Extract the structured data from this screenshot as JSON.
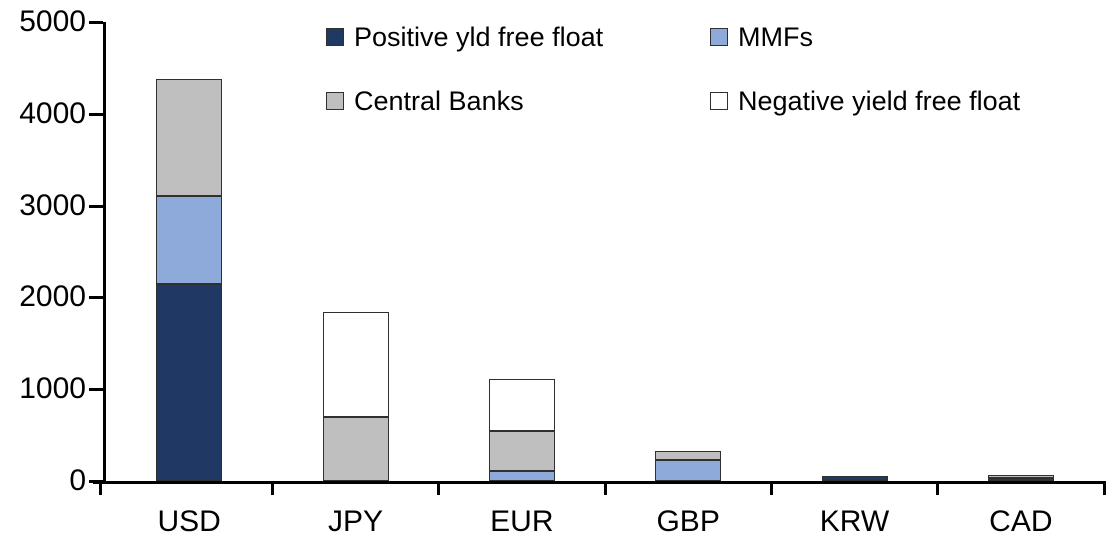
{
  "chart_data": {
    "type": "bar",
    "stacked": true,
    "title": "",
    "xlabel": "",
    "ylabel": "",
    "categories": [
      "USD",
      "JPY",
      "EUR",
      "GBP",
      "KRW",
      "CAD"
    ],
    "series": [
      {
        "name": "Positive yld free float",
        "color": "#1F3864",
        "values": [
          2150,
          0,
          0,
          0,
          50,
          30
        ]
      },
      {
        "name": "MMFs",
        "color": "#8EAADB",
        "values": [
          950,
          0,
          110,
          230,
          0,
          0
        ]
      },
      {
        "name": "Central Banks",
        "color": "#BFBFBF",
        "values": [
          1280,
          700,
          430,
          100,
          0,
          30
        ]
      },
      {
        "name": "Negative yield free float",
        "color": "#FFFFFF",
        "values": [
          0,
          1140,
          570,
          0,
          0,
          0
        ]
      }
    ],
    "ylim": [
      0,
      5000
    ],
    "yticks": [
      0,
      1000,
      2000,
      3000,
      4000,
      5000
    ],
    "legend_position": "top",
    "grid": false,
    "axis_color": "#000000",
    "segment_border_color": "#303030",
    "background_color": "#FFFFFF"
  }
}
